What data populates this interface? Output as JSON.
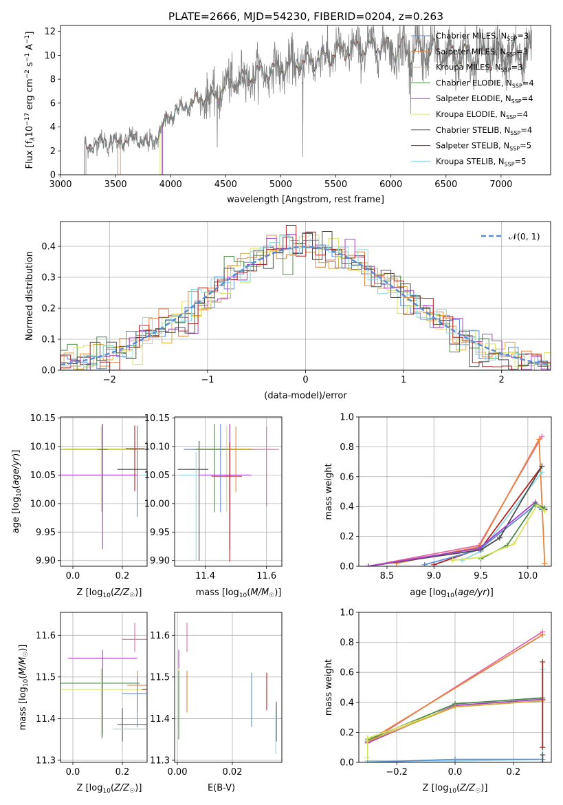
{
  "title": "PLATE=2666, MJD=54230, FIBERID=0204, z=0.263",
  "colors": {
    "chabrier_miles": "#5b8bd6",
    "salpeter_miles": "#e8823a",
    "kroupa_miles": "#d7a63a",
    "chabrier_elodie": "#4c8a4a",
    "salpeter_elodie": "#a63fc9",
    "kroupa_elodie": "#d8e35a",
    "chabrier_stelib": "#4a4a4a",
    "salpeter_stelib": "#b02020",
    "kroupa_stelib": "#8fd8e0",
    "spectrum": "#7f7f7f",
    "gaussian": "#5b8bd6",
    "extra_pink": "#e56aa6"
  },
  "chart_data": [
    {
      "id": "spectrum",
      "type": "line",
      "xlabel": "wavelength [Angstrom, rest frame]",
      "ylabel_parts": [
        "Flux [f",
        "λ",
        "10",
        "−17",
        " erg cm",
        "−2",
        " s",
        "−1",
        " A",
        "−1",
        "]"
      ],
      "xlim": [
        3000,
        7450
      ],
      "ylim": [
        0,
        12.5
      ],
      "xticks": [
        3000,
        3500,
        4000,
        4500,
        5000,
        5500,
        6000,
        6500,
        7000
      ],
      "yticks": [
        0,
        2,
        4,
        6,
        8,
        10,
        12
      ],
      "data_range": [
        3220,
        7280
      ],
      "anchors": [
        [
          3220,
          2.2
        ],
        [
          3300,
          2.6
        ],
        [
          3400,
          2.8
        ],
        [
          3500,
          2.7
        ],
        [
          3600,
          2.9
        ],
        [
          3700,
          3.0
        ],
        [
          3800,
          2.5
        ],
        [
          3900,
          3.5
        ],
        [
          3950,
          4.4
        ],
        [
          4000,
          5.0
        ],
        [
          4100,
          5.6
        ],
        [
          4200,
          6.1
        ],
        [
          4300,
          6.4
        ],
        [
          4400,
          6.7
        ],
        [
          4500,
          7.5
        ],
        [
          4700,
          8.2
        ],
        [
          4900,
          8.7
        ],
        [
          5100,
          9.1
        ],
        [
          5300,
          9.6
        ],
        [
          5500,
          10.2
        ],
        [
          5700,
          10.6
        ],
        [
          5900,
          10.8
        ],
        [
          6100,
          10.4
        ],
        [
          6300,
          10.3
        ],
        [
          6500,
          10.2
        ],
        [
          6700,
          10.0
        ],
        [
          6900,
          9.9
        ],
        [
          7100,
          10.0
        ],
        [
          7280,
          10.0
        ]
      ],
      "legend": [
        {
          "name": "Chabrier MILES, N",
          "sub": "SSP",
          "tail": "=3"
        },
        {
          "name": "Salpeter MILES, N",
          "sub": "SSP",
          "tail": "=3"
        },
        {
          "name": "Kroupa MILES, N",
          "sub": "SSP",
          "tail": "=3"
        },
        {
          "name": "Chabrier ELODIE, N",
          "sub": "SSP",
          "tail": "=4"
        },
        {
          "name": "Salpeter ELODIE, N",
          "sub": "SSP",
          "tail": "=4"
        },
        {
          "name": "Kroupa ELODIE, N",
          "sub": "SSP",
          "tail": "=4"
        },
        {
          "name": "Chabrier STELIB, N",
          "sub": "SSP",
          "tail": "=4"
        },
        {
          "name": "Salpeter STELIB, N",
          "sub": "SSP",
          "tail": "=5"
        },
        {
          "name": "Kroupa STELIB, N",
          "sub": "SSP",
          "tail": "=5"
        }
      ]
    },
    {
      "id": "residuals",
      "type": "histogram",
      "xlabel": "(data-model)/error",
      "ylabel": "Normed distribution",
      "xlim": [
        -2.5,
        2.5
      ],
      "ylim": [
        0,
        0.48
      ],
      "xticks": [
        -2,
        -1,
        0,
        1,
        2
      ],
      "yticks": [
        0.0,
        0.1,
        0.2,
        0.3,
        0.4
      ],
      "bin_width": 0.1,
      "gaussian_legend": "𝒩(0, 1)",
      "grid": true
    },
    {
      "id": "age_vs_Z",
      "type": "errorbar",
      "xlabel": "Z [log10(Z/Z☉)]",
      "ylabel": "age  [log10(age/yr)]",
      "xlim": [
        -0.05,
        0.3
      ],
      "ylim": [
        9.89,
        10.152
      ],
      "xticks": [
        0.0,
        0.2
      ],
      "yticks": [
        9.9,
        9.95,
        10.0,
        10.05,
        10.1,
        10.15
      ],
      "points": [
        {
          "s": "kroupa_miles",
          "x": 0.12,
          "y": 10.095,
          "xerr": [
            0.17,
            0.14
          ],
          "yerr": [
            0.11,
            0.045
          ]
        },
        {
          "s": "kroupa_elodie",
          "x": 0.115,
          "y": 10.096,
          "xerr": [
            0.15,
            0.14
          ],
          "yerr": [
            0.11,
            0.04
          ]
        },
        {
          "s": "chabrier_elodie",
          "x": 0.12,
          "y": 10.095,
          "xerr": [
            0.02,
            0.02
          ],
          "yerr": [
            0.11,
            0.045
          ]
        },
        {
          "s": "salpeter_elodie",
          "x": 0.12,
          "y": 10.05,
          "xerr": [
            0.17,
            0.14
          ],
          "yerr": [
            0.13,
            0.09
          ]
        },
        {
          "s": "salpeter_miles",
          "x": 0.26,
          "y": 10.095,
          "xerr": [
            0.03,
            0.04
          ],
          "yerr": [
            0.075,
            0.04
          ]
        },
        {
          "s": "salpeter_stelib",
          "x": 0.25,
          "y": 10.097,
          "xerr": [
            0.035,
            0.04
          ],
          "yerr": [
            0.075,
            0.04
          ]
        },
        {
          "s": "chabrier_miles",
          "x": 0.26,
          "y": 10.097,
          "xerr": [
            0.04,
            0.03
          ],
          "yerr": [
            0.12,
            0.04
          ]
        },
        {
          "s": "chabrier_stelib",
          "x": 0.3,
          "y": 10.06,
          "xerr": [
            0.12,
            0.0
          ],
          "yerr": [
            0.16,
            0.05
          ]
        },
        {
          "s": "kroupa_stelib",
          "x": 0.3,
          "y": 10.05,
          "xerr": [
            0.02,
            0.0
          ],
          "yerr": [
            0.15,
            0.04
          ]
        }
      ]
    },
    {
      "id": "age_vs_mass",
      "type": "errorbar",
      "xlabel": "mass [log10(M/M☉)]",
      "xlim": [
        11.3,
        11.65
      ],
      "ylim": [
        9.89,
        10.152
      ],
      "xticks": [
        11.4,
        11.6
      ],
      "yticks": [
        9.9,
        9.95,
        10.0,
        10.05,
        10.1,
        10.15
      ],
      "points": [
        {
          "s": "kroupa_miles",
          "x": 11.48,
          "y": 10.095,
          "xerr": [
            0.12,
            0.05
          ],
          "yerr": [
            0.13,
            0.045
          ]
        },
        {
          "s": "kroupa_elodie",
          "x": 11.47,
          "y": 10.096,
          "xerr": [
            0.1,
            0.08
          ],
          "yerr": [
            0.11,
            0.04
          ]
        },
        {
          "s": "chabrier_elodie",
          "x": 11.43,
          "y": 10.095,
          "xerr": [
            0.06,
            0.06
          ],
          "yerr": [
            0.11,
            0.045
          ]
        },
        {
          "s": "extra_pink",
          "x": 11.6,
          "y": 10.095,
          "xerr": [
            0.06,
            0.04
          ],
          "yerr": [
            0.1,
            0.04
          ]
        },
        {
          "s": "salpeter_elodie",
          "x": 11.48,
          "y": 10.05,
          "xerr": [
            0.1,
            0.07
          ],
          "yerr": [
            0.13,
            0.09
          ]
        },
        {
          "s": "salpeter_stelib",
          "x": 11.48,
          "y": 10.048,
          "xerr": [
            0.06,
            0.04
          ],
          "yerr": [
            0.15,
            0.06
          ]
        },
        {
          "s": "chabrier_stelib",
          "x": 11.38,
          "y": 10.06,
          "xerr": [
            0.07,
            0.03
          ],
          "yerr": [
            0.16,
            0.05
          ]
        },
        {
          "s": "chabrier_miles",
          "x": 11.45,
          "y": 10.095,
          "xerr": [
            0.12,
            0.04
          ],
          "yerr": [
            0.11,
            0.045
          ]
        },
        {
          "s": "kroupa_stelib",
          "x": 11.37,
          "y": 10.05,
          "xerr": [
            0.05,
            0.0
          ],
          "yerr": [
            0.15,
            0.04
          ]
        },
        {
          "s": "salpeter_miles",
          "x": 11.5,
          "y": 10.095,
          "xerr": [
            0.03,
            0.06
          ],
          "yerr": [
            0.075,
            0.04
          ]
        }
      ]
    },
    {
      "id": "weight_vs_age",
      "type": "line",
      "xlabel": "age  [log10(age/yr)]",
      "ylabel": "mass weight",
      "xlim": [
        8.2,
        10.25
      ],
      "ylim": [
        0,
        1.0
      ],
      "xticks": [
        8.5,
        9.0,
        9.5,
        10.0
      ],
      "yticks": [
        0.0,
        0.2,
        0.4,
        0.6,
        0.8,
        1.0
      ],
      "grid": true,
      "series": [
        {
          "s": "extra_pink",
          "x": [
            8.3,
            9.48,
            10.15
          ],
          "y": [
            0.0,
            0.14,
            0.87
          ]
        },
        {
          "s": "salpeter_miles",
          "x": [
            8.6,
            9.48,
            10.12,
            10.18
          ],
          "y": [
            0.02,
            0.13,
            0.85,
            0.02
          ]
        },
        {
          "s": "salpeter_stelib",
          "x": [
            9.0,
            9.5,
            10.15
          ],
          "y": [
            0.01,
            0.12,
            0.67
          ]
        },
        {
          "s": "kroupa_stelib",
          "x": [
            9.3,
            9.5,
            10.15
          ],
          "y": [
            0.04,
            0.1,
            0.63
          ]
        },
        {
          "s": "chabrier_miles",
          "x": [
            8.9,
            9.48,
            10.08,
            10.15
          ],
          "y": [
            0.01,
            0.11,
            0.41,
            0.38
          ]
        },
        {
          "s": "chabrier_stelib",
          "x": [
            8.3,
            9.5,
            9.7,
            10.15
          ],
          "y": [
            0.0,
            0.11,
            0.19,
            0.67
          ]
        },
        {
          "s": "salpeter_elodie",
          "x": [
            8.3,
            9.48,
            10.08,
            10.18
          ],
          "y": [
            0.0,
            0.12,
            0.43,
            0.38
          ]
        },
        {
          "s": "chabrier_elodie",
          "x": [
            9.5,
            9.78,
            10.08,
            10.18
          ],
          "y": [
            0.05,
            0.14,
            0.42,
            0.39
          ]
        },
        {
          "s": "kroupa_elodie",
          "x": [
            9.2,
            9.5,
            9.85,
            10.1,
            10.18
          ],
          "y": [
            0.04,
            0.06,
            0.15,
            0.41,
            0.37
          ]
        }
      ]
    },
    {
      "id": "mass_vs_Z",
      "type": "errorbar",
      "xlabel": "Z [log10(Z/Z☉)]",
      "ylabel": "mass [log10(M/M☉)]",
      "xlim": [
        -0.05,
        0.3
      ],
      "ylim": [
        11.295,
        11.655
      ],
      "xticks": [
        0.0,
        0.2
      ],
      "yticks": [
        11.3,
        11.4,
        11.5,
        11.6
      ],
      "points": [
        {
          "s": "salpeter_elodie",
          "x": 0.12,
          "y": 11.545,
          "xerr": [
            0.14,
            0.14
          ],
          "yerr": [
            0.18,
            0.02
          ]
        },
        {
          "s": "extra_pink",
          "x": 0.25,
          "y": 11.59,
          "xerr": [
            0.05,
            0.05
          ],
          "yerr": [
            0.03,
            0.04
          ]
        },
        {
          "s": "chabrier_elodie",
          "x": 0.12,
          "y": 11.485,
          "xerr": [
            0.17,
            0.15
          ],
          "yerr": [
            0.13,
            0.035
          ]
        },
        {
          "s": "kroupa_elodie",
          "x": 0.115,
          "y": 11.47,
          "xerr": [
            0.16,
            0.17
          ],
          "yerr": [
            0.12,
            0.05
          ]
        },
        {
          "s": "salpeter_miles",
          "x": 0.26,
          "y": 11.48,
          "xerr": [
            0.04,
            0.04
          ],
          "yerr": [
            0.065,
            0.035
          ]
        },
        {
          "s": "salpeter_stelib",
          "x": 0.3,
          "y": 11.47,
          "xerr": [
            0.02,
            0.0
          ],
          "yerr": [
            0.05,
            0.04
          ]
        },
        {
          "s": "chabrier_miles",
          "x": 0.26,
          "y": 11.46,
          "xerr": [
            0.06,
            0.04
          ],
          "yerr": [
            0.08,
            0.04
          ]
        },
        {
          "s": "chabrier_stelib",
          "x": 0.2,
          "y": 11.385,
          "xerr": [
            0.02,
            0.1
          ],
          "yerr": [
            0.04,
            0.04
          ]
        },
        {
          "s": "kroupa_stelib",
          "x": 0.3,
          "y": 11.375,
          "xerr": [
            0.14,
            0.0
          ],
          "yerr": [
            0.06,
            0.045
          ]
        }
      ]
    },
    {
      "id": "mass_vs_ebv",
      "type": "errorbar",
      "xlabel": "E(B-V)",
      "xlim": [
        -0.001,
        0.038
      ],
      "ylim": [
        11.295,
        11.655
      ],
      "xticks": [
        0.0,
        0.02
      ],
      "yticks": [
        11.3,
        11.4,
        11.5,
        11.6
      ],
      "points": [
        {
          "s": "salpeter_elodie",
          "x": 0.0005,
          "y": 11.55,
          "yerr": [
            0.17,
            0.015
          ]
        },
        {
          "s": "kroupa_elodie",
          "x": 0.0005,
          "y": 11.47,
          "yerr": [
            0.12,
            0.05
          ]
        },
        {
          "s": "chabrier_elodie",
          "x": 0.0005,
          "y": 11.48,
          "yerr": [
            0.13,
            0.035
          ]
        },
        {
          "s": "extra_pink",
          "x": 0.0035,
          "y": 11.59,
          "yerr": [
            0.03,
            0.04
          ]
        },
        {
          "s": "salpeter_miles",
          "x": 0.0035,
          "y": 11.48,
          "yerr": [
            0.065,
            0.035
          ]
        },
        {
          "s": "chabrier_miles",
          "x": 0.027,
          "y": 11.47,
          "yerr": [
            0.09,
            0.04
          ]
        },
        {
          "s": "salpeter_stelib",
          "x": 0.0325,
          "y": 11.47,
          "yerr": [
            0.05,
            0.04
          ]
        },
        {
          "s": "chabrier_stelib",
          "x": 0.036,
          "y": 11.385,
          "yerr": [
            0.04,
            0.055
          ]
        },
        {
          "s": "kroupa_stelib",
          "x": 0.0358,
          "y": 11.375,
          "yerr": [
            0.06,
            0.045
          ]
        }
      ]
    },
    {
      "id": "weight_vs_Z",
      "type": "line",
      "xlabel": "Z [log10(Z/Z☉)]",
      "ylabel": "mass weight",
      "xlim": [
        -0.33,
        0.33
      ],
      "ylim": [
        0,
        1.0
      ],
      "xticks": [
        -0.2,
        0.0,
        0.2
      ],
      "yticks": [
        0.0,
        0.2,
        0.4,
        0.6,
        0.8,
        1.0
      ],
      "grid": true,
      "series": [
        {
          "s": "extra_pink",
          "x": [
            -0.3,
            0.3
          ],
          "y": [
            0.13,
            0.87
          ]
        },
        {
          "s": "salpeter_miles",
          "x": [
            -0.3,
            0.3
          ],
          "y": [
            0.14,
            0.85
          ]
        },
        {
          "s": "salpeter_elodie",
          "x": [
            -0.3,
            0.0,
            0.3
          ],
          "y": [
            0.13,
            0.38,
            0.42
          ]
        },
        {
          "s": "chabrier_elodie",
          "x": [
            -0.3,
            0.0,
            0.3
          ],
          "y": [
            0.15,
            0.39,
            0.43
          ]
        },
        {
          "s": "kroupa_elodie",
          "x": [
            -0.3,
            0.0,
            0.3
          ],
          "y": [
            0.16,
            0.37,
            0.41
          ]
        },
        {
          "s": "kroupa_miles",
          "x": [
            -0.3,
            0.0,
            0.3
          ],
          "y": [
            0.14,
            0.37,
            0.41
          ]
        },
        {
          "s": "kroupa_stelib",
          "x": [
            -0.3,
            0.0,
            0.3,
            0.3
          ],
          "y": [
            0.01,
            0.01,
            0.02,
            0.62
          ]
        },
        {
          "s": "chabrier_miles",
          "x": [
            -0.3,
            0.0,
            0.3
          ],
          "y": [
            0.0,
            0.02,
            0.02
          ]
        },
        {
          "s": "salpeter_stelib",
          "x": [
            0.3,
            0.3
          ],
          "y": [
            0.1,
            0.67
          ]
        },
        {
          "s": "chabrier_stelib",
          "x": [
            0.3,
            0.3
          ],
          "y": [
            0.0,
            0.05
          ]
        },
        {
          "s": "kroupa_elodie",
          "x": [
            -0.3,
            -0.3
          ],
          "y": [
            0.03,
            0.16
          ]
        }
      ]
    }
  ]
}
